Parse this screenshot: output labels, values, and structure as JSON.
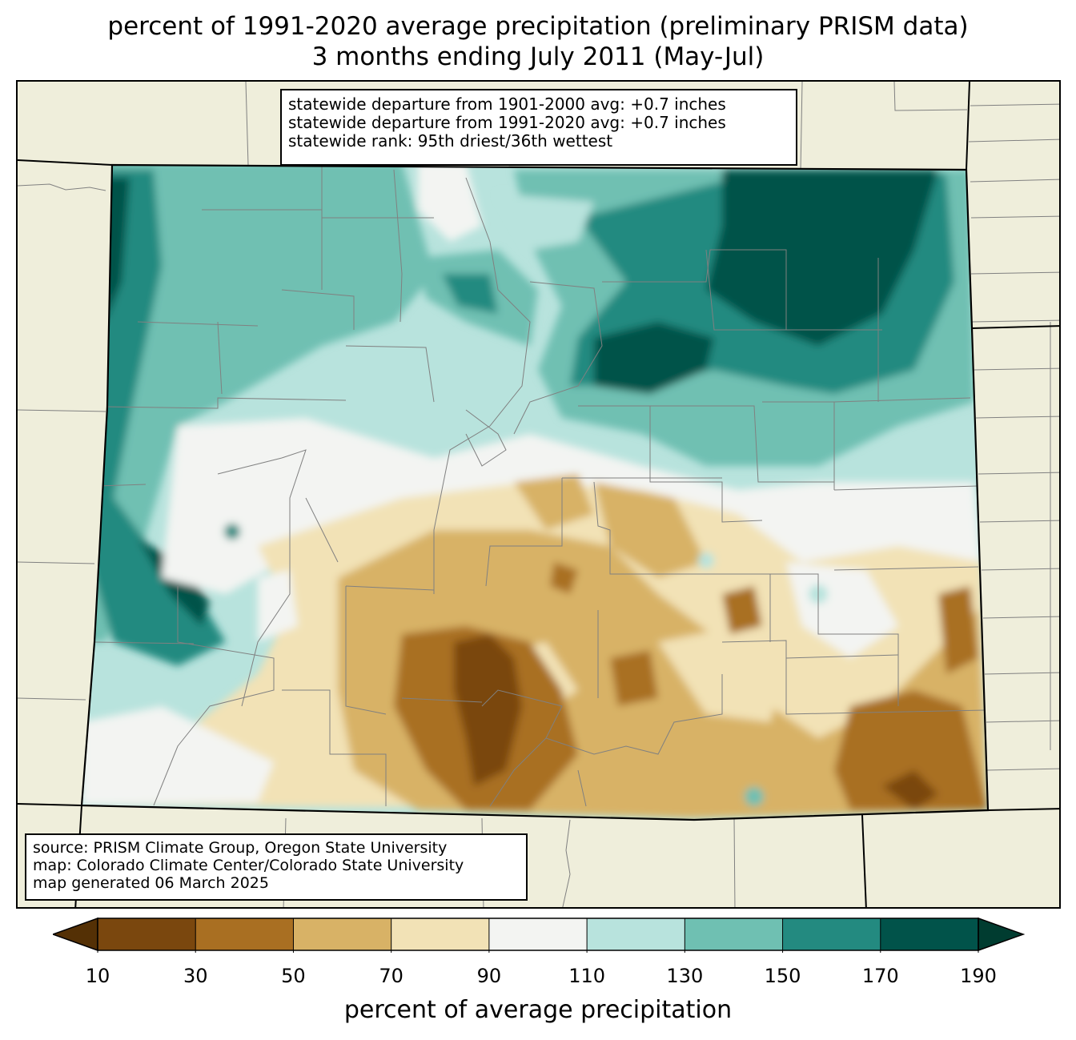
{
  "title": {
    "line1": "percent of 1991-2020 average precipitation (preliminary PRISM data)",
    "line2": "3 months ending July 2011 (May-Jul)"
  },
  "stats_box": {
    "line1": "statewide departure from 1901-2000 avg: +0.7 inches",
    "line2": "statewide departure from 1991-2020 avg: +0.7 inches",
    "line3": "statewide rank: 95th driest/36th wettest"
  },
  "source_box": {
    "line1": "source: PRISM Climate Group, Oregon State University",
    "line2": "map: Colorado Climate Center/Colorado State University",
    "line3": "map generated 06 March 2025"
  },
  "colorbar": {
    "label": "percent of average precipitation",
    "ticks": [
      "10",
      "30",
      "50",
      "70",
      "90",
      "110",
      "130",
      "150",
      "170",
      "190"
    ],
    "colors": [
      "#7a470e",
      "#a96f22",
      "#d8b266",
      "#f2e2b6",
      "#f3f4f2",
      "#b8e3dd",
      "#6fc0b2",
      "#238a80",
      "#01534a"
    ],
    "under_color": "#543005",
    "over_color": "#003c30"
  },
  "map_colors": {
    "background": "#efeedb",
    "state_border": "#000000",
    "county_border": "#808080"
  },
  "chart_data": {
    "type": "heatmap",
    "title": "percent of 1991-2020 average precipitation (preliminary PRISM data)",
    "subtitle": "3 months ending July 2011 (May-Jul)",
    "region": "Colorado",
    "legend_label": "percent of average precipitation",
    "levels": [
      10,
      30,
      50,
      70,
      90,
      110,
      130,
      150,
      170,
      190
    ],
    "statewide_departure_1901_2000_in": 0.7,
    "statewide_departure_1991_2020_in": 0.7,
    "statewide_rank_driest": 95,
    "statewide_rank_wettest": 36
  }
}
